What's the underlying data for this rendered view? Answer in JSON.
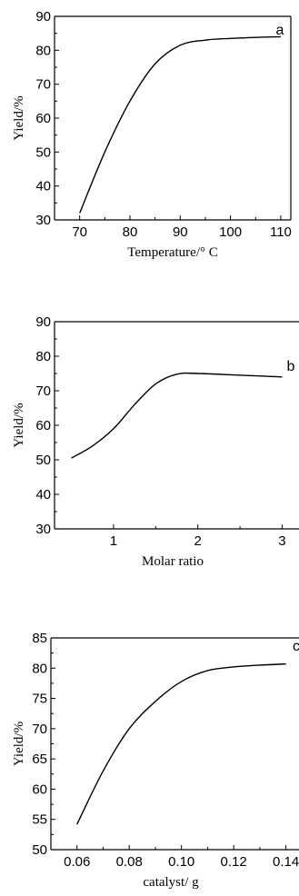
{
  "chart_data": [
    {
      "type": "line",
      "panel": "a",
      "xlabel": "Temperature/° C",
      "ylabel": "Yield/%",
      "xlim": [
        65,
        112
      ],
      "ylim": [
        30,
        90
      ],
      "xticks": [
        70,
        80,
        90,
        100,
        110
      ],
      "yticks": [
        30,
        40,
        50,
        60,
        70,
        80,
        90
      ],
      "x": [
        70,
        75,
        80,
        85,
        90,
        95,
        100,
        105,
        110
      ],
      "y": [
        32,
        50,
        65,
        76,
        81.5,
        83,
        83.5,
        83.8,
        84
      ]
    },
    {
      "type": "line",
      "panel": "b",
      "xlabel": "Molar ratio",
      "ylabel": "Yield/%",
      "xlim": [
        0.3,
        3.2
      ],
      "ylim": [
        30,
        90
      ],
      "xticks": [
        1,
        2,
        3
      ],
      "yticks": [
        30,
        40,
        50,
        60,
        70,
        80,
        90
      ],
      "x": [
        0.5,
        0.75,
        1.0,
        1.25,
        1.5,
        1.75,
        2.0,
        2.5,
        3.0
      ],
      "y": [
        50.5,
        54,
        59,
        66,
        72,
        74.8,
        75,
        74.5,
        74
      ]
    },
    {
      "type": "line",
      "panel": "c",
      "xlabel": "catalyst/ g",
      "ylabel": "Yield/%",
      "xlim": [
        0.05,
        0.145
      ],
      "ylim": [
        50,
        85
      ],
      "xticks": [
        0.06,
        0.08,
        0.1,
        0.12,
        0.14
      ],
      "xtick_labels": [
        "0.06",
        "0.08",
        "0.10",
        "0.12",
        "0.14"
      ],
      "yticks": [
        50,
        55,
        60,
        65,
        70,
        75,
        80,
        85
      ],
      "x": [
        0.06,
        0.07,
        0.08,
        0.09,
        0.1,
        0.11,
        0.12,
        0.13,
        0.14
      ],
      "y": [
        54.2,
        63,
        70,
        74.5,
        77.8,
        79.6,
        80.2,
        80.5,
        80.7
      ]
    }
  ]
}
